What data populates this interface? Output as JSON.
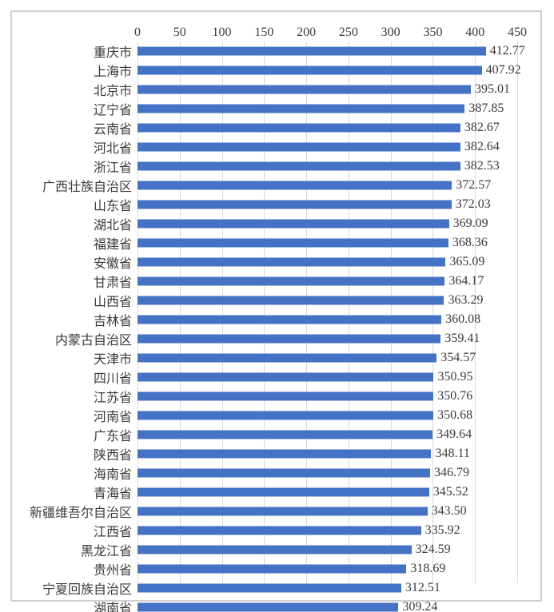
{
  "chart_data": {
    "type": "bar",
    "orientation": "horizontal",
    "title": "",
    "xlabel": "",
    "ylabel": "",
    "xlim": [
      0,
      450
    ],
    "x_ticks": [
      0,
      50,
      100,
      150,
      200,
      250,
      300,
      350,
      400,
      450
    ],
    "grid": true,
    "legend": "none",
    "axis_position": "top",
    "categories": [
      "重庆市",
      "上海市",
      "北京市",
      "辽宁省",
      "云南省",
      "河北省",
      "浙江省",
      "广西壮族自治区",
      "山东省",
      "湖北省",
      "福建省",
      "安徽省",
      "甘肃省",
      "山西省",
      "吉林省",
      "内蒙古自治区",
      "天津市",
      "四川省",
      "江苏省",
      "河南省",
      "广东省",
      "陕西省",
      "海南省",
      "青海省",
      "新疆维吾尔自治区",
      "江西省",
      "黑龙江省",
      "贵州省",
      "宁夏回族自治区",
      "湖南省"
    ],
    "values": [
      412.77,
      407.92,
      395.01,
      387.85,
      382.67,
      382.64,
      382.53,
      372.57,
      372.03,
      369.09,
      368.36,
      365.09,
      364.17,
      363.29,
      360.08,
      359.41,
      354.57,
      350.95,
      350.76,
      350.68,
      349.64,
      348.11,
      346.79,
      345.52,
      343.5,
      335.92,
      324.59,
      318.69,
      312.51,
      309.24
    ],
    "value_labels": [
      "412.77",
      "407.92",
      "395.01",
      "387.85",
      "382.67",
      "382.64",
      "382.53",
      "372.57",
      "372.03",
      "369.09",
      "368.36",
      "365.09",
      "364.17",
      "363.29",
      "360.08",
      "359.41",
      "354.57",
      "350.95",
      "350.76",
      "350.68",
      "349.64",
      "348.11",
      "346.79",
      "345.52",
      "343.50",
      "335.92",
      "324.59",
      "318.69",
      "312.51",
      "309.24"
    ],
    "colors": {
      "bar": "#4472c4",
      "gridline": "#d9d9d9",
      "frame_border": "#cfcfcf",
      "text": "#3a3a3a",
      "background": "#ffffff"
    }
  }
}
